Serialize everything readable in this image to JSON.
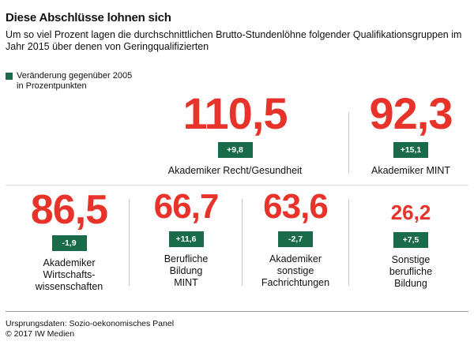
{
  "title": "Diese Abschlüsse lohnen sich",
  "subtitle": "Um so viel Prozent lagen die durchschnittlichen Brutto-Stundenlöhne folgender Qualifikationsgruppen im Jahr 2015 über denen von Geringqualifizierten",
  "legend": {
    "label_line1": "Veränderung gegenüber 2005",
    "label_line2": "in Prozentpunkten",
    "swatch_color": "#1a6b49"
  },
  "colors": {
    "value": "#e8332a",
    "change": "#1a6b49"
  },
  "chart_data": {
    "type": "table",
    "title": "Diese Abschlüsse lohnen sich",
    "value_unit": "Prozent",
    "change_unit": "Prozentpunkte",
    "items": [
      {
        "label_lines": [
          "Akademiker Recht/Gesundheit"
        ],
        "value": "110,5",
        "change": "+9,8"
      },
      {
        "label_lines": [
          "Akademiker MINT"
        ],
        "value": "92,3",
        "change": "+15,1"
      },
      {
        "label_lines": [
          "Akademiker",
          "Wirtschafts-",
          "wissenschaften"
        ],
        "value": "86,5",
        "change": "-1,9"
      },
      {
        "label_lines": [
          "Berufliche",
          "Bildung",
          "MINT"
        ],
        "value": "66,7",
        "change": "+11,6"
      },
      {
        "label_lines": [
          "Akademiker",
          "sonstige",
          "Fachrichtungen"
        ],
        "value": "63,6",
        "change": "-2,7"
      },
      {
        "label_lines": [
          "Sonstige",
          "berufliche",
          "Bildung"
        ],
        "value": "26,2",
        "change": "+7,5"
      }
    ]
  },
  "source": {
    "line1": "Ursprungsdaten: Sozio-oekonomisches Panel",
    "line2": "© 2017 IW Medien"
  }
}
